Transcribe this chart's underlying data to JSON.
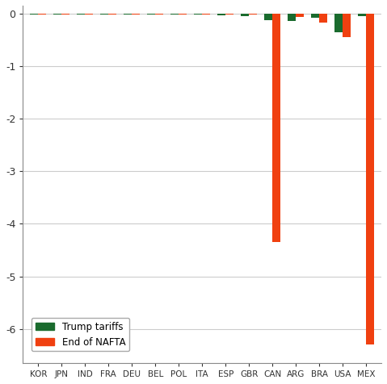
{
  "categories": [
    "KOR",
    "JPN",
    "IND",
    "FRA",
    "DEU",
    "BEL",
    "POL",
    "ITA",
    "ESP",
    "GBR",
    "CAN",
    "ARG",
    "BRA",
    "USA",
    "MEX"
  ],
  "trump_tariffs": [
    -0.02,
    -0.02,
    -0.02,
    -0.02,
    -0.02,
    -0.02,
    -0.02,
    -0.02,
    -0.03,
    -0.05,
    -0.12,
    -0.15,
    -0.08,
    -0.35,
    -0.05
  ],
  "end_of_nafta": [
    -0.02,
    -0.02,
    -0.02,
    -0.02,
    -0.02,
    -0.02,
    -0.02,
    -0.02,
    -0.02,
    -0.02,
    -4.35,
    -0.06,
    -0.18,
    -0.45,
    -6.3
  ],
  "trump_color": "#1a6b2e",
  "nafta_color": "#f04010",
  "background_color": "#ffffff",
  "ylim": [
    -6.65,
    0.15
  ],
  "yticks": [
    0,
    -1,
    -2,
    -3,
    -4,
    -5,
    -6
  ],
  "bar_width": 0.35,
  "legend_trump": "Trump tariffs",
  "legend_nafta": "End of NAFTA",
  "grid_color": "#cccccc",
  "spine_color": "#888888",
  "tick_label_color": "#333333"
}
